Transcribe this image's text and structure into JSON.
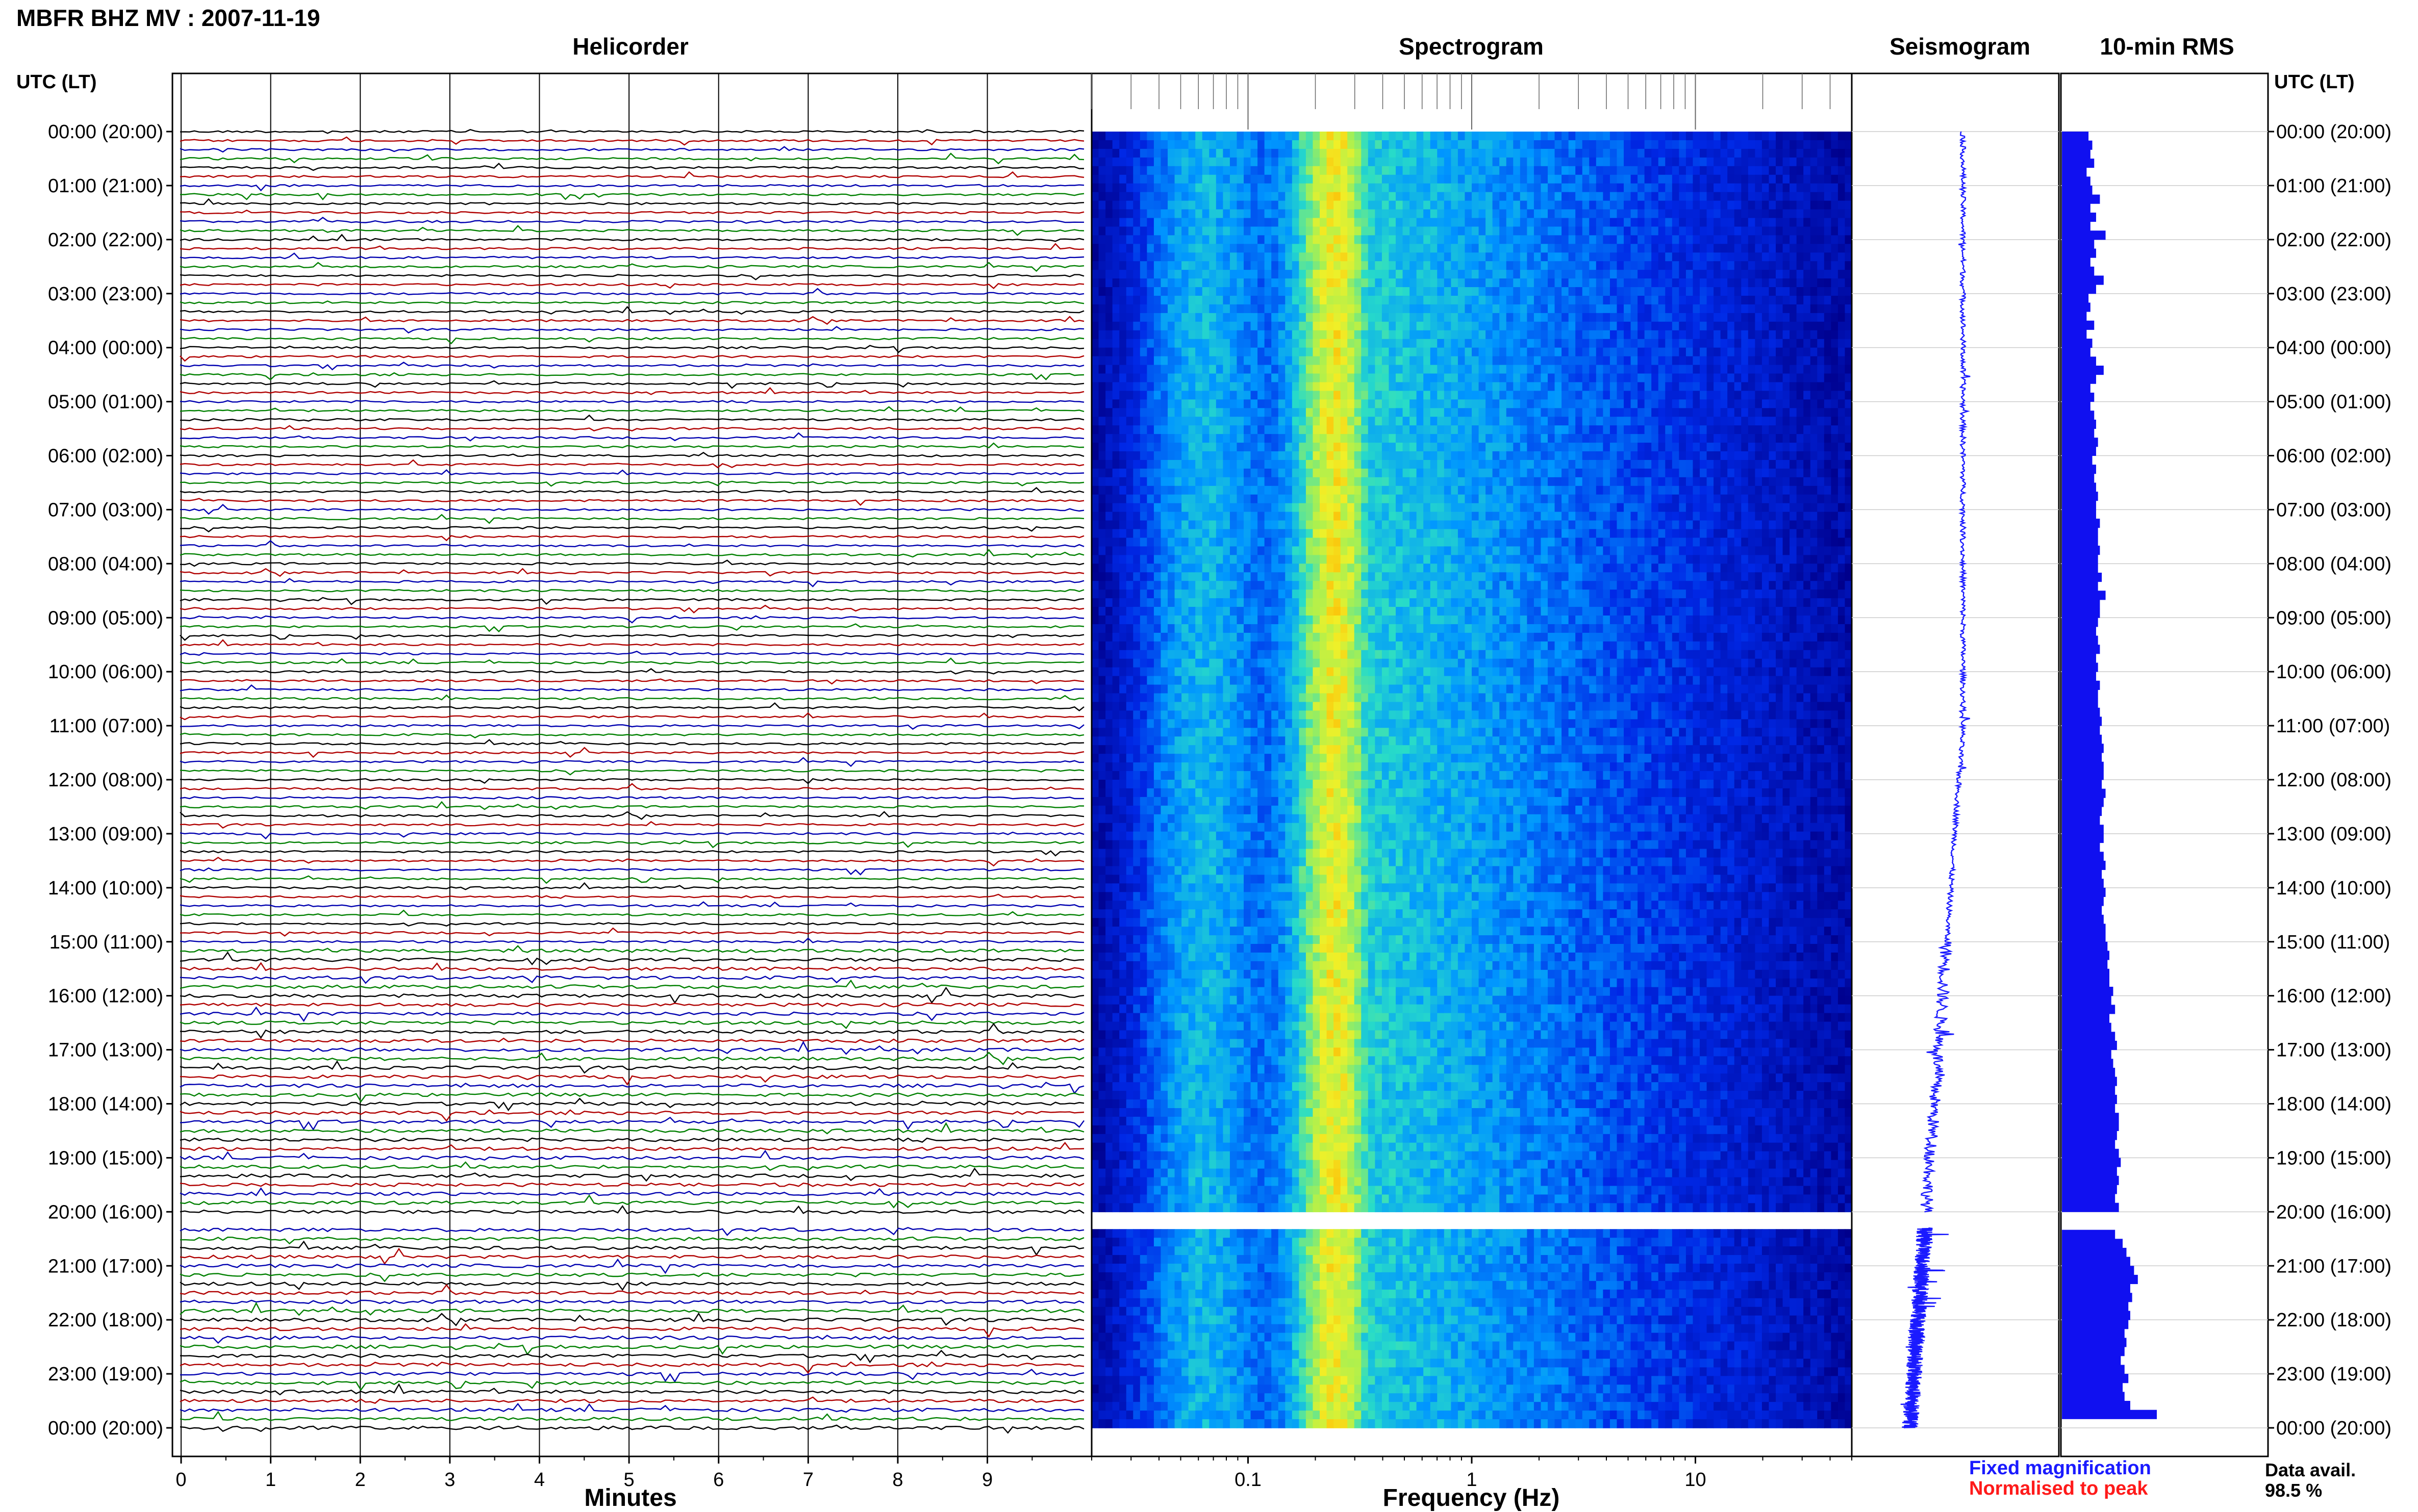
{
  "header": {
    "title": "MBFR BHZ MV : 2007-11-19",
    "tz_label_left": "UTC (LT)",
    "tz_label_right": "UTC (LT)"
  },
  "panels": {
    "helicorder": "Helicorder",
    "spectrogram": "Spectrogram",
    "seismogram": "Seismogram",
    "rms": "10-min RMS"
  },
  "legend": {
    "fixed": "Fixed magnification",
    "normalised": "Normalised to peak",
    "fixed_color": "#1a1aff",
    "normalised_color": "#ff1a1a"
  },
  "availability": {
    "label": "Data avail.",
    "value": "98.5 %"
  },
  "chart_data": [
    {
      "type": "line",
      "title": "Helicorder",
      "xlabel": "Minutes",
      "ylabel": "UTC (LT)",
      "x_ticks": [
        "0",
        "1",
        "2",
        "3",
        "4",
        "5",
        "6",
        "7",
        "8",
        "9"
      ],
      "xlim": [
        0,
        10
      ],
      "y_tick_labels": [
        "00:00 (20:00)",
        "01:00 (21:00)",
        "02:00 (22:00)",
        "03:00 (23:00)",
        "04:00 (00:00)",
        "05:00 (01:00)",
        "06:00 (02:00)",
        "07:00 (03:00)",
        "08:00 (04:00)",
        "09:00 (05:00)",
        "10:00 (06:00)",
        "11:00 (07:00)",
        "12:00 (08:00)",
        "13:00 (09:00)",
        "14:00 (10:00)",
        "15:00 (11:00)",
        "16:00 (12:00)",
        "17:00 (13:00)",
        "18:00 (14:00)",
        "19:00 (15:00)",
        "20:00 (16:00)",
        "21:00 (17:00)",
        "22:00 (18:00)",
        "23:00 (19:00)",
        "00:00 (20:00)"
      ],
      "trace_colors": [
        "#000000",
        "#b00000",
        "#0000b0",
        "#008000"
      ],
      "gap_hours": [
        20.0,
        20.3
      ]
    },
    {
      "type": "heatmap",
      "title": "Spectrogram",
      "xlabel": "Frequency (Hz)",
      "x_scale": "log",
      "xlim": [
        0.02,
        50
      ],
      "x_ticks": [
        "0.1",
        "1",
        "10"
      ],
      "peak_frequency_hz": 0.25,
      "gap_hours": [
        20.0,
        20.3
      ]
    },
    {
      "type": "line",
      "title": "Seismogram",
      "gap_hours": [
        20.0,
        20.3
      ]
    },
    {
      "type": "bar",
      "title": "10-min RMS",
      "orientation": "horizontal",
      "bin_minutes": 10,
      "values": [
        0.28,
        0.32,
        0.3,
        0.34,
        0.26,
        0.3,
        0.32,
        0.4,
        0.3,
        0.36,
        0.3,
        0.46,
        0.34,
        0.36,
        0.3,
        0.34,
        0.44,
        0.36,
        0.28,
        0.3,
        0.26,
        0.34,
        0.26,
        0.32,
        0.3,
        0.36,
        0.44,
        0.36,
        0.3,
        0.34,
        0.3,
        0.34,
        0.36,
        0.34,
        0.38,
        0.36,
        0.32,
        0.36,
        0.34,
        0.36,
        0.38,
        0.36,
        0.36,
        0.4,
        0.38,
        0.38,
        0.4,
        0.38,
        0.38,
        0.42,
        0.38,
        0.46,
        0.4,
        0.4,
        0.38,
        0.36,
        0.38,
        0.4,
        0.36,
        0.38,
        0.36,
        0.4,
        0.38,
        0.38,
        0.4,
        0.42,
        0.4,
        0.42,
        0.44,
        0.42,
        0.44,
        0.44,
        0.42,
        0.46,
        0.44,
        0.42,
        0.4,
        0.44,
        0.44,
        0.4,
        0.44,
        0.46,
        0.42,
        0.44,
        0.46,
        0.44,
        0.42,
        0.44,
        0.46,
        0.46,
        0.48,
        0.5,
        0.48,
        0.5,
        0.5,
        0.54,
        0.52,
        0.56,
        0.5,
        0.52,
        0.56,
        0.58,
        0.52,
        0.54,
        0.56,
        0.58,
        0.56,
        0.58,
        0.56,
        0.6,
        0.6,
        0.58,
        0.56,
        0.6,
        0.62,
        0.58,
        0.6,
        0.58,
        0.56,
        0.6,
        0.0,
        0.0,
        0.56,
        0.64,
        0.68,
        0.72,
        0.76,
        0.8,
        0.72,
        0.74,
        0.7,
        0.72,
        0.7,
        0.66,
        0.68,
        0.66,
        0.62,
        0.66,
        0.7,
        0.64,
        0.66,
        0.72,
        1.0
      ],
      "xlim": [
        0,
        1
      ]
    }
  ]
}
